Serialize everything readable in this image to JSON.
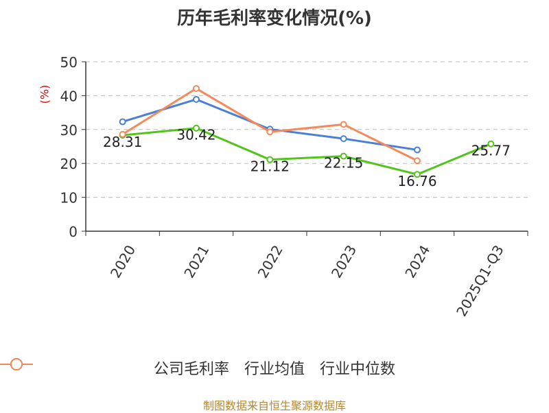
{
  "chart_data": {
    "type": "line",
    "title": "历年毛利率变化情况(%)",
    "ylabel": "(%)",
    "xlabel": "",
    "categories": [
      "2020",
      "2021",
      "2022",
      "2023",
      "2024",
      "2025Q1-Q3"
    ],
    "ylim": [
      0,
      50
    ],
    "yticks": [
      0,
      10,
      20,
      30,
      40,
      50
    ],
    "grid": true,
    "legend_position": "bottom",
    "series": [
      {
        "name": "公司毛利率",
        "color": "#52c41a",
        "values": [
          28.31,
          30.42,
          21.12,
          22.15,
          16.76,
          25.77
        ],
        "show_labels": true
      },
      {
        "name": "行业均值",
        "color": "#4a7fd8",
        "values": [
          32.3,
          38.9,
          30.1,
          27.3,
          24.0,
          null
        ],
        "show_labels": false
      },
      {
        "name": "行业中位数",
        "color": "#f5895a",
        "values": [
          28.6,
          42.1,
          29.3,
          31.5,
          20.8,
          null
        ],
        "show_labels": false
      }
    ],
    "data_labels": [
      "28.31",
      "30.42",
      "21.12",
      "22.15",
      "16.76",
      "25.77"
    ]
  },
  "footer": {
    "source": "制图数据来自恒生聚源数据库"
  }
}
